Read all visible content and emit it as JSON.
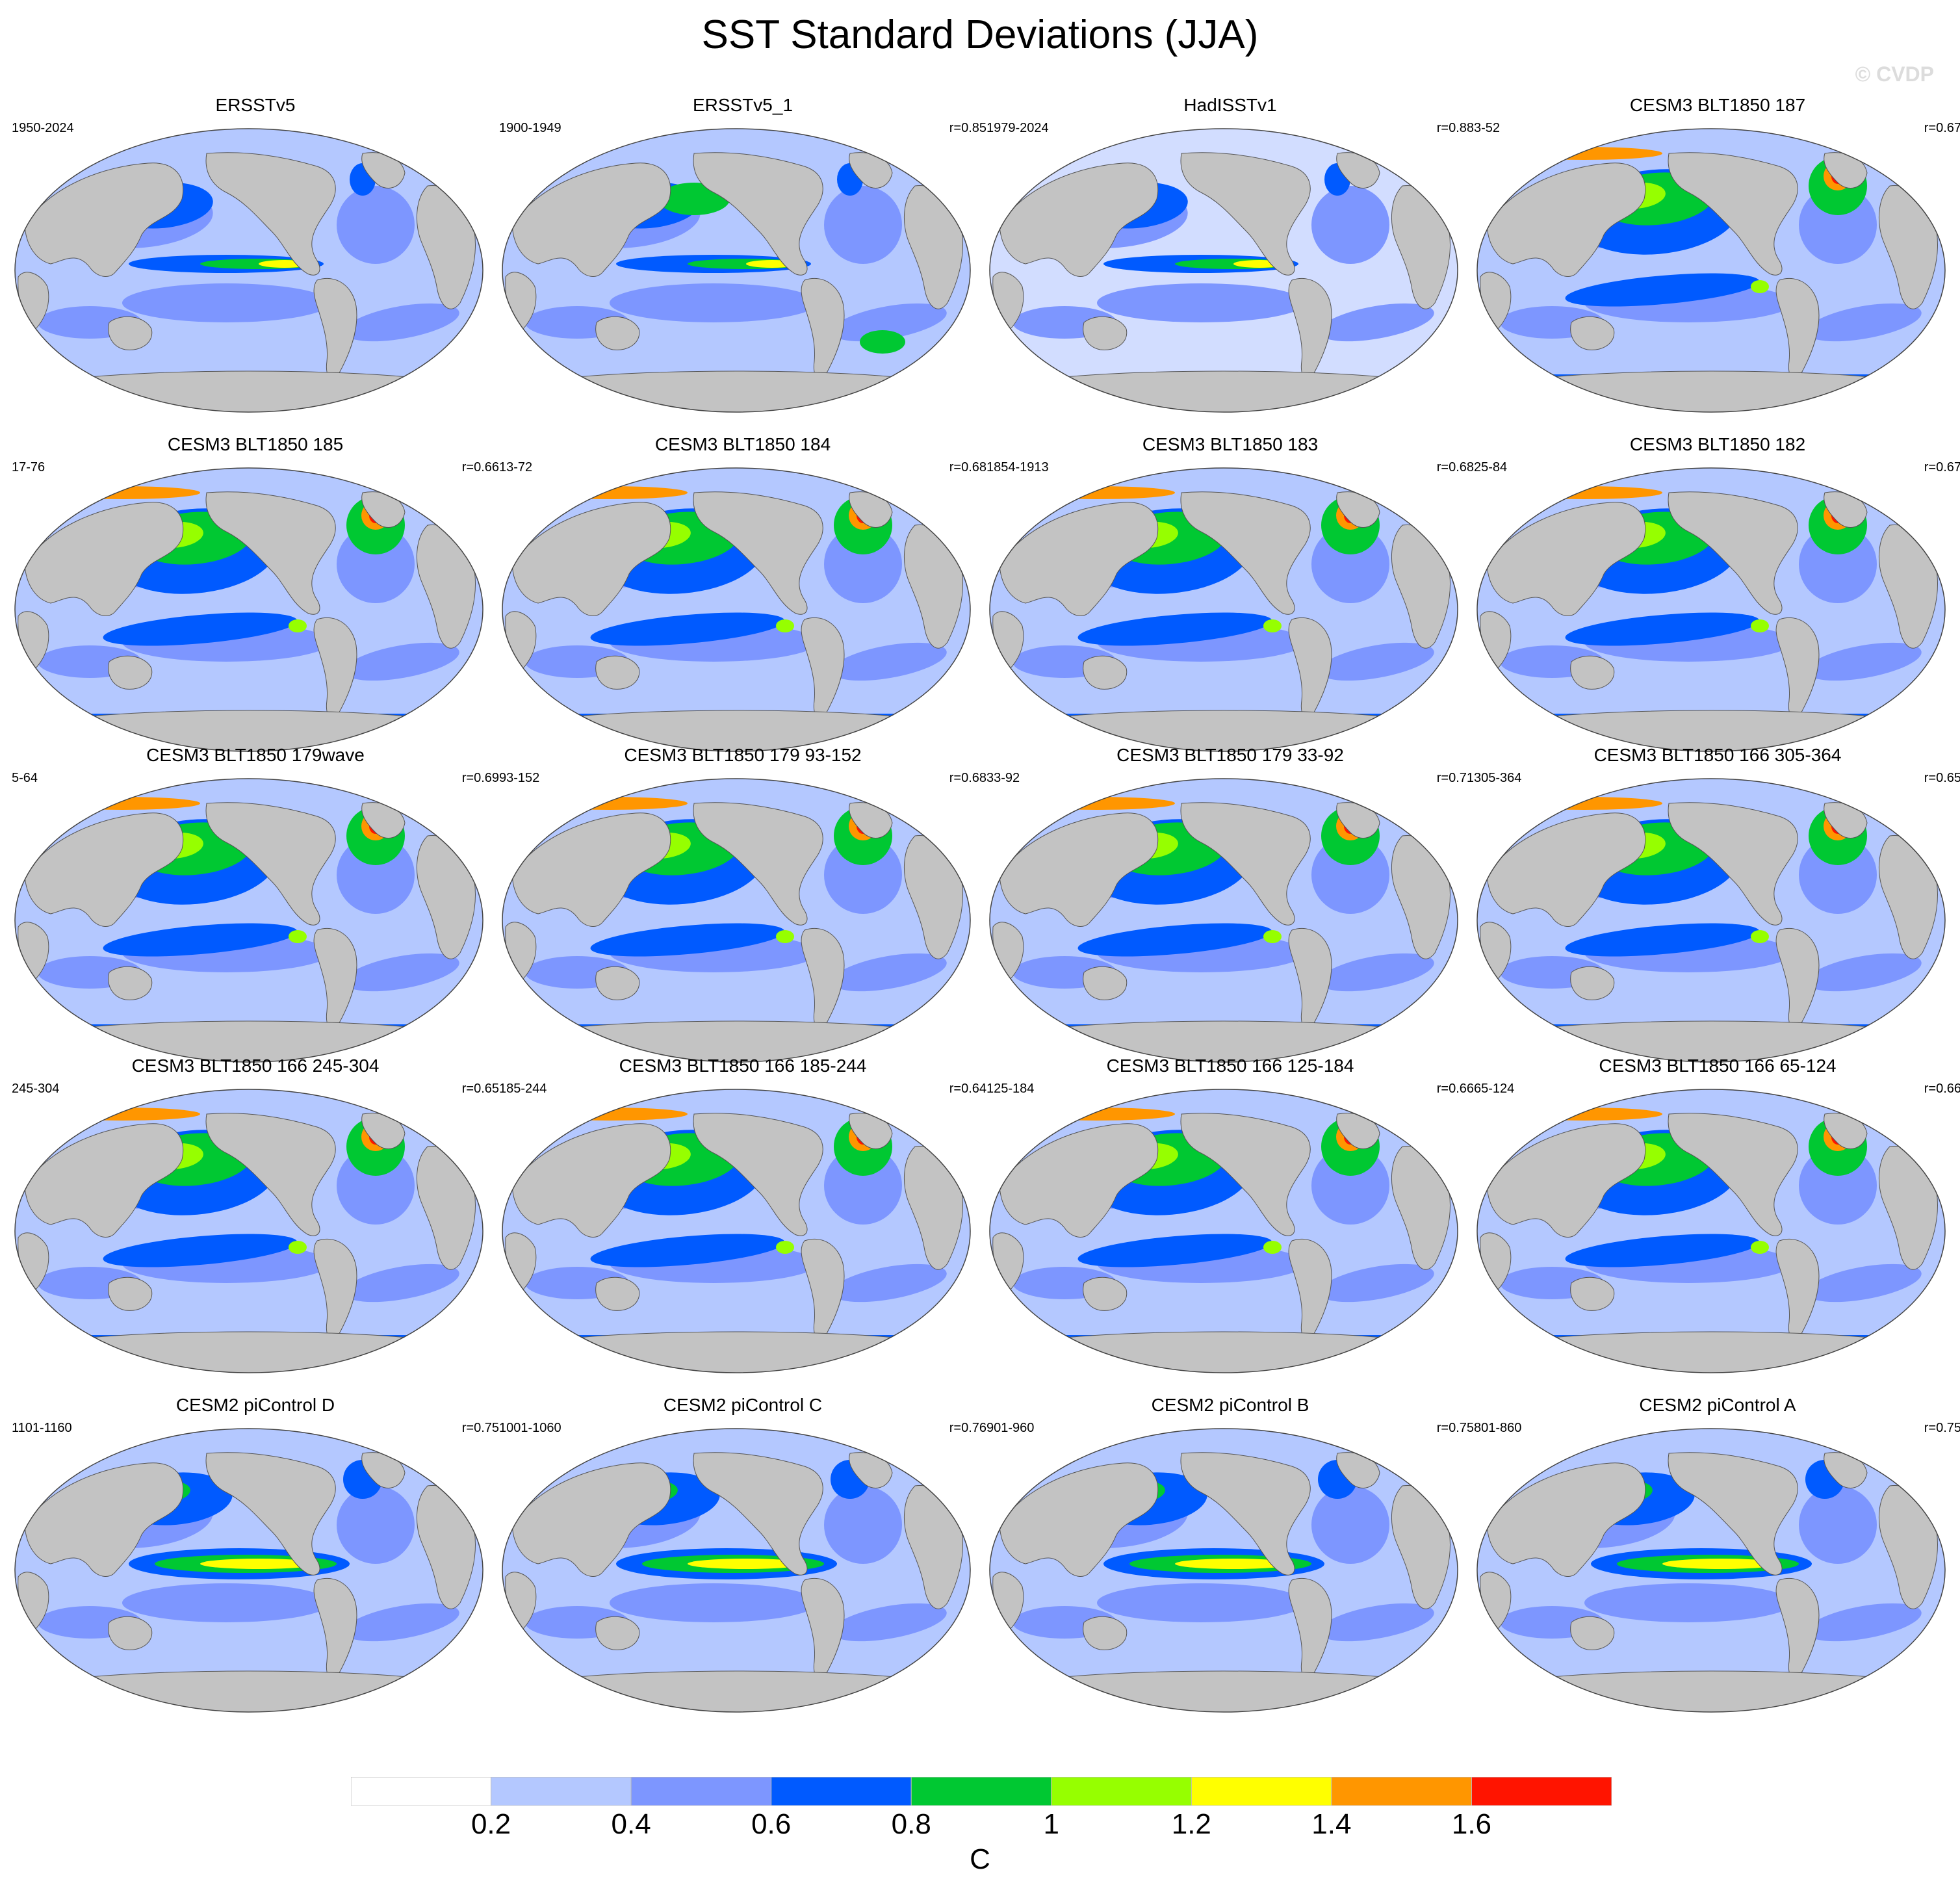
{
  "figure": {
    "title": "SST Standard Deviations (JJA)",
    "watermark": "© CVDP"
  },
  "panels": [
    {
      "title": "ERSSTv5",
      "years": "1950-2024",
      "r": "",
      "style": "obs1",
      "palette_note": "mostly light blue, El Nino tongue green/yellow"
    },
    {
      "title": "ERSSTv5_1",
      "years": "1900-1949",
      "r": "r=0.85",
      "style": "obs1"
    },
    {
      "title": "HadISSTv1",
      "years": "1979-2024",
      "r": "r=0.88",
      "style": "obs2"
    },
    {
      "title": "CESM3 BLT1850 187",
      "years": "3-52",
      "r": "r=0.67",
      "style": "cesm3"
    },
    {
      "title": "CESM3 BLT1850 185",
      "years": "17-76",
      "r": "r=0.66",
      "style": "cesm3"
    },
    {
      "title": "CESM3 BLT1850 184",
      "years": "13-72",
      "r": "r=0.68",
      "style": "cesm3"
    },
    {
      "title": "CESM3 BLT1850 183",
      "years": "1854-1913",
      "r": "r=0.68",
      "style": "cesm3"
    },
    {
      "title": "CESM3 BLT1850 182",
      "years": "25-84",
      "r": "r=0.67",
      "style": "cesm3"
    },
    {
      "title": "CESM3 BLT1850 179wave",
      "years": "5-64",
      "r": "r=0.69",
      "style": "cesm3"
    },
    {
      "title": "CESM3 BLT1850 179 93-152",
      "years": "93-152",
      "r": "r=0.68",
      "style": "cesm3"
    },
    {
      "title": "CESM3 BLT1850 179 33-92",
      "years": "33-92",
      "r": "r=0.71",
      "style": "cesm3"
    },
    {
      "title": "CESM3 BLT1850 166 305-364",
      "years": "305-364",
      "r": "r=0.65",
      "style": "cesm3"
    },
    {
      "title": "CESM3 BLT1850 166 245-304",
      "years": "245-304",
      "r": "r=0.65",
      "style": "cesm3"
    },
    {
      "title": "CESM3 BLT1850 166 185-244",
      "years": "185-244",
      "r": "r=0.64",
      "style": "cesm3"
    },
    {
      "title": "CESM3 BLT1850 166 125-184",
      "years": "125-184",
      "r": "r=0.66",
      "style": "cesm3"
    },
    {
      "title": "CESM3 BLT1850 166 65-124",
      "years": "65-124",
      "r": "r=0.66",
      "style": "cesm3"
    },
    {
      "title": "CESM2 piControl D",
      "years": "1101-1160",
      "r": "r=0.75",
      "style": "cesm2"
    },
    {
      "title": "CESM2 piControl C",
      "years": "1001-1060",
      "r": "r=0.76",
      "style": "cesm2"
    },
    {
      "title": "CESM2 piControl B",
      "years": "901-960",
      "r": "r=0.75",
      "style": "cesm2"
    },
    {
      "title": "CESM2 piControl A",
      "years": "801-860",
      "r": "r=0.75",
      "style": "cesm2"
    }
  ],
  "colorbar": {
    "colors": [
      "#ffffff",
      "#b4c8ff",
      "#7d96ff",
      "#005aff",
      "#00c832",
      "#96ff00",
      "#ffff00",
      "#ff9600",
      "#ff1400"
    ],
    "labels": [
      "0.2",
      "0.4",
      "0.6",
      "0.8",
      "1",
      "1.2",
      "1.4",
      "1.6"
    ],
    "unit": "C"
  },
  "colors": {
    "land": "#c3c3c3",
    "ocean_base": "#b4c8ff"
  }
}
